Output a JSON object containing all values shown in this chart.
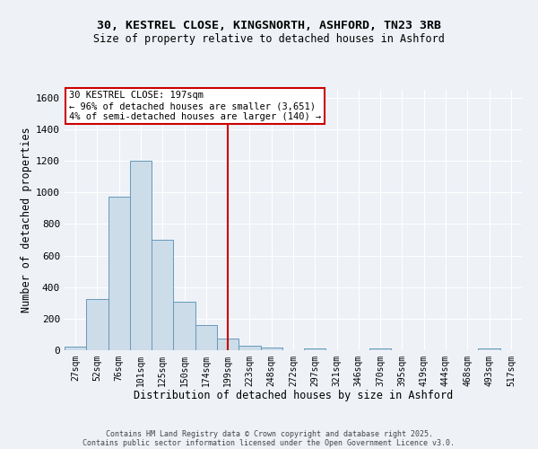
{
  "title_line1": "30, KESTREL CLOSE, KINGSNORTH, ASHFORD, TN23 3RB",
  "title_line2": "Size of property relative to detached houses in Ashford",
  "xlabel": "Distribution of detached houses by size in Ashford",
  "ylabel": "Number of detached properties",
  "bin_labels": [
    "27sqm",
    "52sqm",
    "76sqm",
    "101sqm",
    "125sqm",
    "150sqm",
    "174sqm",
    "199sqm",
    "223sqm",
    "248sqm",
    "272sqm",
    "297sqm",
    "321sqm",
    "346sqm",
    "370sqm",
    "395sqm",
    "419sqm",
    "444sqm",
    "468sqm",
    "493sqm",
    "517sqm"
  ],
  "bar_values": [
    25,
    325,
    975,
    1200,
    700,
    305,
    160,
    75,
    30,
    15,
    0,
    10,
    0,
    0,
    10,
    0,
    0,
    0,
    0,
    10,
    0
  ],
  "bar_color": "#ccdce8",
  "bar_edge_color": "#6699bb",
  "vline_x_index": 7,
  "vline_color": "#cc0000",
  "annotation_text": "30 KESTREL CLOSE: 197sqm\n← 96% of detached houses are smaller (3,651)\n4% of semi-detached houses are larger (140) →",
  "annotation_box_edge_color": "#cc0000",
  "annotation_box_face_color": "#ffffff",
  "ylim": [
    0,
    1650
  ],
  "yticks": [
    0,
    200,
    400,
    600,
    800,
    1000,
    1200,
    1400,
    1600
  ],
  "background_color": "#eef2f7",
  "grid_color": "#ffffff",
  "footer_line1": "Contains HM Land Registry data © Crown copyright and database right 2025.",
  "footer_line2": "Contains public sector information licensed under the Open Government Licence v3.0."
}
